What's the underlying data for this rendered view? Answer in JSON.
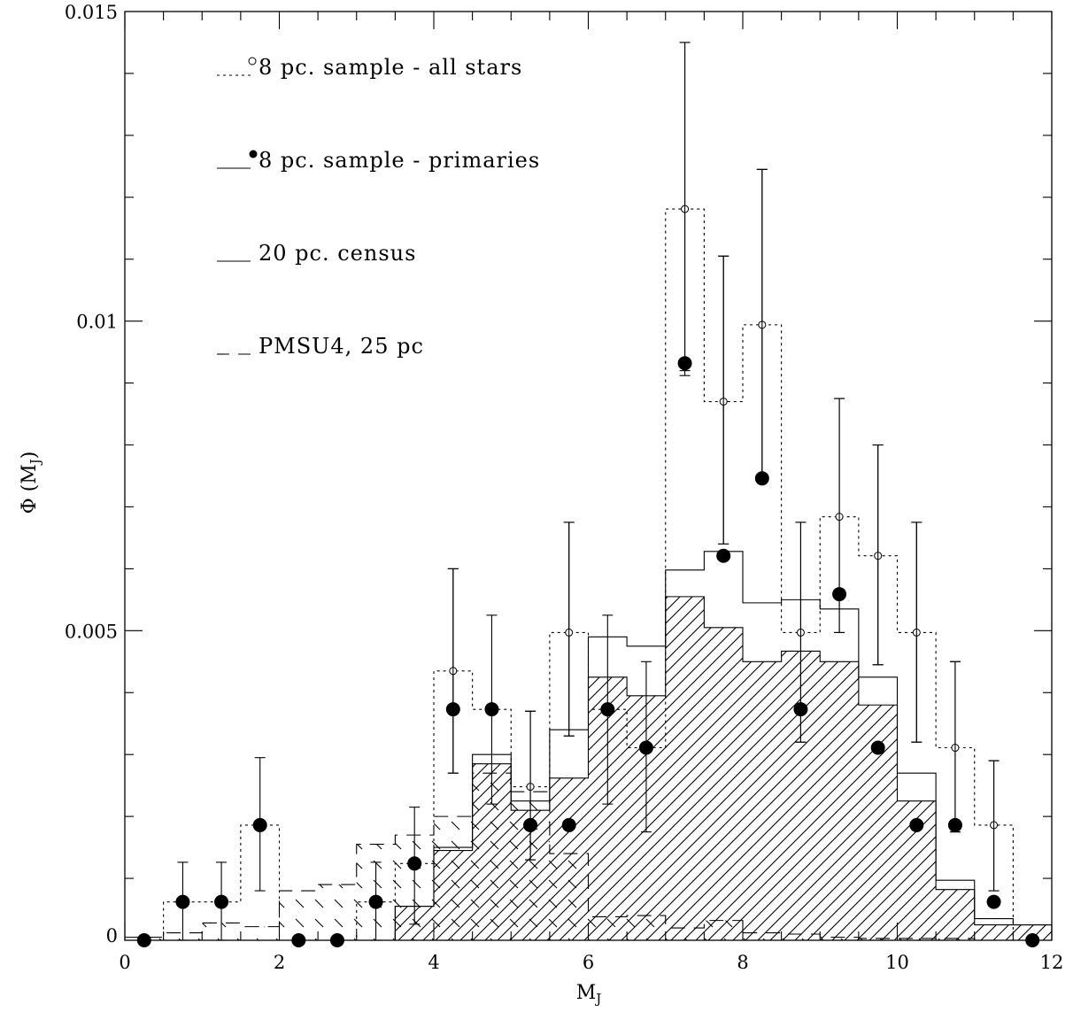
{
  "chart_data": {
    "type": "bar",
    "xlabel": "M",
    "xlabel_sub": "J",
    "ylabel_prefix": "Φ (M",
    "ylabel_sub": "J",
    "ylabel_suffix": ")",
    "xlim": [
      0,
      12
    ],
    "ylim": [
      0,
      0.015
    ],
    "x_ticks": [
      0,
      2,
      4,
      6,
      8,
      10,
      12
    ],
    "x_tick_labels": [
      "0",
      "2",
      "4",
      "6",
      "8",
      "10",
      "12"
    ],
    "y_ticks": [
      0,
      0.005,
      0.01,
      0.015
    ],
    "y_tick_labels": [
      "0",
      "0.005",
      "0.01",
      "0.015"
    ],
    "bin_edges": [
      0,
      0.5,
      1,
      1.5,
      2,
      2.5,
      3,
      3.5,
      4,
      4.5,
      5,
      5.5,
      6,
      6.5,
      7,
      7.5,
      8,
      8.5,
      9,
      9.5,
      10,
      10.5,
      11,
      11.5,
      12
    ],
    "legend": [
      {
        "label": "8 pc. sample - all stars",
        "line": "dotted",
        "marker": "open-circle"
      },
      {
        "label": "8 pc. sample - primaries",
        "line": "solid",
        "marker": "filled-circle"
      },
      {
        "label": "20 pc. census",
        "line": "solid",
        "marker": "none"
      },
      {
        "label": "PMSU4, 25 pc",
        "line": "dashed",
        "marker": "none"
      }
    ],
    "series": [
      {
        "name": "8 pc. sample - all stars",
        "style": "dotted-step",
        "values": [
          0,
          0.00062,
          0.00062,
          0.00186,
          0,
          0,
          0.00062,
          0.00124,
          0.00435,
          0.00373,
          0.00248,
          0.00497,
          0.00373,
          0.00311,
          0.01181,
          0.0087,
          0.00994,
          0.00497,
          0.00684,
          0.00621,
          0.00497,
          0.00311,
          0.00186,
          0
        ]
      },
      {
        "name": "8 pc. sample - all stars",
        "style": "open-circle-errorbars",
        "points": [
          {
            "x": 7.25,
            "y": 0.01181,
            "lo": 0.0092,
            "hi": 0.0145
          },
          {
            "x": 7.75,
            "y": 0.0087,
            "lo": 0.0064,
            "hi": 0.01105
          },
          {
            "x": 8.25,
            "y": 0.00994,
            "lo": 0.00745,
            "hi": 0.01245
          },
          {
            "x": 8.75,
            "y": 0.00497,
            "lo": 0.0032,
            "hi": 0.00675
          },
          {
            "x": 9.25,
            "y": 0.00684,
            "lo": 0.00497,
            "hi": 0.00875
          },
          {
            "x": 9.75,
            "y": 0.00621,
            "lo": 0.00445,
            "hi": 0.008
          },
          {
            "x": 10.25,
            "y": 0.00497,
            "lo": 0.0032,
            "hi": 0.00675
          },
          {
            "x": 10.75,
            "y": 0.00311,
            "lo": 0.00175,
            "hi": 0.0045
          },
          {
            "x": 11.25,
            "y": 0.00186,
            "lo": 0.0008,
            "hi": 0.0029
          },
          {
            "x": 4.25,
            "y": 0.00435,
            "lo": 0.0027,
            "hi": 0.006
          },
          {
            "x": 5.25,
            "y": 0.00248,
            "lo": 0.0013,
            "hi": 0.0037
          },
          {
            "x": 5.75,
            "y": 0.00497,
            "lo": 0.0033,
            "hi": 0.00675
          }
        ]
      },
      {
        "name": "8 pc. sample - primaries",
        "style": "filled-circle-errorbars",
        "points": [
          {
            "x": 0.25,
            "y": 0,
            "lo": 0,
            "hi": 0
          },
          {
            "x": 0.75,
            "y": 0.00062,
            "lo": 0,
            "hi": 0.00126
          },
          {
            "x": 1.25,
            "y": 0.00062,
            "lo": 0,
            "hi": 0.00126
          },
          {
            "x": 1.75,
            "y": 0.00186,
            "lo": 0.0008,
            "hi": 0.00295
          },
          {
            "x": 2.25,
            "y": 0,
            "lo": 0,
            "hi": 0
          },
          {
            "x": 2.75,
            "y": 0,
            "lo": 0,
            "hi": 0
          },
          {
            "x": 3.25,
            "y": 0.00062,
            "lo": 0,
            "hi": 0.00126
          },
          {
            "x": 3.75,
            "y": 0.00124,
            "lo": 0.00026,
            "hi": 0.00215
          },
          {
            "x": 4.25,
            "y": 0.00373,
            "lo": 0.0027,
            "hi": 0.006
          },
          {
            "x": 4.75,
            "y": 0.00373,
            "lo": 0.0022,
            "hi": 0.00525
          },
          {
            "x": 5.25,
            "y": 0.00186,
            "lo": 0.0013,
            "hi": 0.0037
          },
          {
            "x": 5.75,
            "y": 0.00186,
            "lo": 0.0033,
            "hi": 0.00675
          },
          {
            "x": 6.25,
            "y": 0.00373,
            "lo": 0.0022,
            "hi": 0.00525
          },
          {
            "x": 6.75,
            "y": 0.00311,
            "lo": 0.00175,
            "hi": 0.0045
          },
          {
            "x": 7.25,
            "y": 0.00932,
            "lo": 0.00912,
            "hi": 0.0145
          },
          {
            "x": 7.75,
            "y": 0.00621,
            "lo": 0.0064,
            "hi": 0.01105
          },
          {
            "x": 8.25,
            "y": 0.00746,
            "lo": 0.00745,
            "hi": 0.01245
          },
          {
            "x": 8.75,
            "y": 0.00373,
            "lo": 0.0032,
            "hi": 0.00675
          },
          {
            "x": 9.25,
            "y": 0.00559,
            "lo": 0.00497,
            "hi": 0.00875
          },
          {
            "x": 9.75,
            "y": 0.00311,
            "lo": 0.00445,
            "hi": 0.008
          },
          {
            "x": 10.25,
            "y": 0.00186,
            "lo": 0.0032,
            "hi": 0.00675
          },
          {
            "x": 10.75,
            "y": 0.00186,
            "lo": 0.00175,
            "hi": 0.0045
          },
          {
            "x": 11.25,
            "y": 0.00062,
            "lo": 0.0008,
            "hi": 0.0029
          },
          {
            "x": 11.75,
            "y": 0,
            "lo": 0,
            "hi": 0
          }
        ]
      },
      {
        "name": "20 pc. census",
        "style": "solid-step",
        "values": [
          0,
          0,
          0,
          0,
          0,
          0,
          0,
          0.00055,
          0.0015,
          0.003,
          0.00225,
          0.0034,
          0.0049,
          0.00475,
          0.00598,
          0.00628,
          0.00545,
          0.0055,
          0.00535,
          0.00425,
          0.0027,
          0.00097,
          0.00035,
          0.00025
        ]
      },
      {
        "name": "20 pc. census",
        "style": "hatched-step",
        "values": [
          0,
          0,
          0,
          0,
          0,
          0,
          0,
          0.00055,
          0.00145,
          0.00285,
          0.0021,
          0.00262,
          0.00425,
          0.00395,
          0.00555,
          0.00505,
          0.0045,
          0.00467,
          0.0045,
          0.0038,
          0.00225,
          0.00082,
          0.00025,
          0.00025
        ]
      },
      {
        "name": "PMSU4, 25 pc",
        "style": "dashed-step-crosshatch",
        "values": [
          5e-05,
          0.00012,
          0.00028,
          0.00022,
          0.0008,
          0.0009,
          0.00155,
          0.0017,
          0.002,
          0.0027,
          0.0024,
          0.0014,
          0.00038,
          0.0004,
          0.0002,
          0.00032,
          0.00012,
          0.0001,
          5e-05,
          3e-05,
          3e-05,
          3e-05,
          0,
          0
        ]
      }
    ]
  }
}
